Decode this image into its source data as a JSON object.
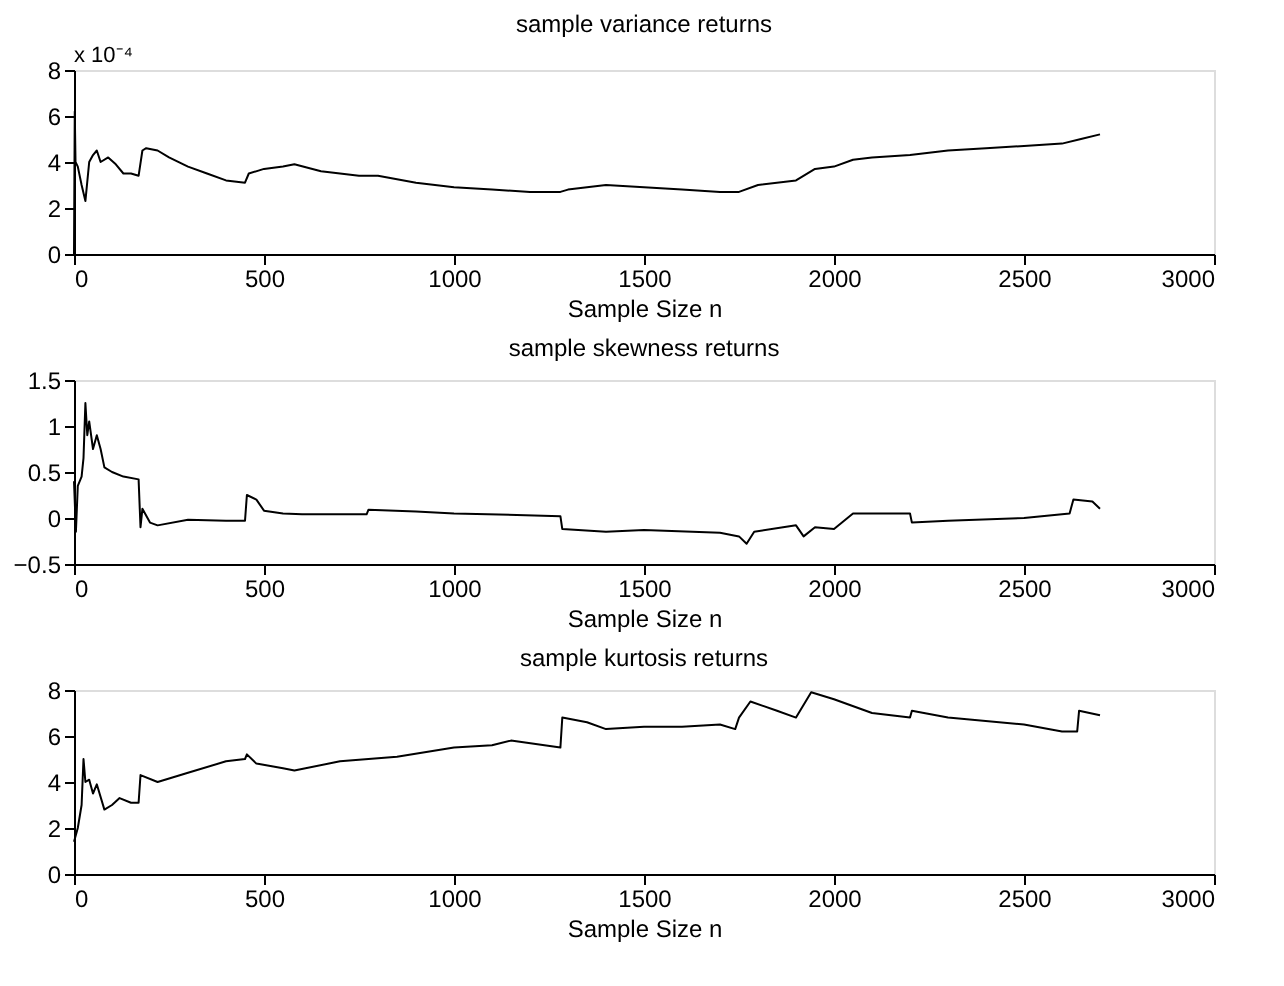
{
  "chart_data": [
    {
      "type": "line",
      "title": "sample variance returns",
      "xlabel": "Sample Size n",
      "annotations": [
        "x 10⁻⁴"
      ],
      "x": [
        0,
        2,
        4,
        10,
        20,
        30,
        40,
        50,
        60,
        70,
        90,
        110,
        130,
        150,
        170,
        180,
        190,
        220,
        250,
        300,
        350,
        400,
        450,
        460,
        500,
        550,
        580,
        650,
        750,
        800,
        900,
        1000,
        1100,
        1200,
        1280,
        1300,
        1400,
        1500,
        1600,
        1700,
        1750,
        1800,
        1900,
        1950,
        2000,
        2050,
        2100,
        2200,
        2300,
        2400,
        2500,
        2600,
        2650,
        2700
      ],
      "series": [
        {
          "color": "#000000",
          "values": [
            0.0,
            6.2,
            4.0,
            3.8,
            3.0,
            2.3,
            4.0,
            4.3,
            4.5,
            4.0,
            4.2,
            3.9,
            3.5,
            3.5,
            3.4,
            4.5,
            4.6,
            4.5,
            4.2,
            3.8,
            3.5,
            3.2,
            3.1,
            3.5,
            3.7,
            3.8,
            3.9,
            3.6,
            3.4,
            3.4,
            3.1,
            2.9,
            2.8,
            2.7,
            2.7,
            2.8,
            3.0,
            2.9,
            2.8,
            2.7,
            2.7,
            3.0,
            3.2,
            3.7,
            3.8,
            4.1,
            4.2,
            4.3,
            4.5,
            4.6,
            4.7,
            4.8,
            5.0,
            5.2
          ]
        }
      ],
      "xlim": [
        0,
        3000
      ],
      "xticks": [
        0,
        500,
        1000,
        1500,
        2000,
        2500,
        3000
      ],
      "ylim": [
        0,
        8
      ],
      "yticks": [
        0,
        2,
        4,
        6,
        8
      ]
    },
    {
      "type": "line",
      "title": "sample skewness returns",
      "xlabel": "Sample Size n",
      "x": [
        0,
        5,
        10,
        20,
        25,
        30,
        35,
        40,
        50,
        60,
        70,
        80,
        100,
        130,
        170,
        175,
        180,
        200,
        220,
        300,
        400,
        450,
        455,
        480,
        500,
        550,
        600,
        770,
        775,
        900,
        1000,
        1280,
        1285,
        1400,
        1500,
        1700,
        1750,
        1770,
        1790,
        1900,
        1920,
        1950,
        2000,
        2050,
        2200,
        2205,
        2300,
        2500,
        2620,
        2630,
        2680,
        2700
      ],
      "series": [
        {
          "color": "#000000",
          "values": [
            0.4,
            -0.15,
            0.35,
            0.45,
            0.65,
            1.25,
            0.9,
            1.05,
            0.75,
            0.9,
            0.75,
            0.55,
            0.5,
            0.45,
            0.42,
            -0.1,
            0.1,
            -0.05,
            -0.08,
            -0.02,
            -0.03,
            -0.03,
            0.25,
            0.2,
            0.08,
            0.05,
            0.04,
            0.04,
            0.09,
            0.07,
            0.05,
            0.02,
            -0.12,
            -0.15,
            -0.13,
            -0.16,
            -0.2,
            -0.28,
            -0.15,
            -0.08,
            -0.2,
            -0.1,
            -0.12,
            0.05,
            0.05,
            -0.05,
            -0.03,
            0.0,
            0.05,
            0.2,
            0.18,
            0.1
          ]
        }
      ],
      "xlim": [
        0,
        3000
      ],
      "xticks": [
        0,
        500,
        1000,
        1500,
        2000,
        2500,
        3000
      ],
      "ylim": [
        -0.5,
        1.5
      ],
      "yticks": [
        -0.5,
        0,
        0.5,
        1,
        1.5
      ]
    },
    {
      "type": "line",
      "title": "sample kurtosis returns",
      "xlabel": "Sample Size n",
      "x": [
        0,
        10,
        20,
        25,
        30,
        40,
        50,
        60,
        80,
        100,
        120,
        150,
        170,
        175,
        220,
        300,
        400,
        450,
        455,
        480,
        550,
        580,
        700,
        850,
        1000,
        1100,
        1150,
        1280,
        1285,
        1350,
        1400,
        1500,
        1600,
        1700,
        1740,
        1750,
        1780,
        1850,
        1900,
        1940,
        2000,
        2100,
        2200,
        2205,
        2300,
        2500,
        2600,
        2640,
        2645,
        2700
      ],
      "series": [
        {
          "color": "#000000",
          "values": [
            1.4,
            2.0,
            3.0,
            5.0,
            4.0,
            4.1,
            3.5,
            3.9,
            2.8,
            3.0,
            3.3,
            3.1,
            3.1,
            4.3,
            4.0,
            4.4,
            4.9,
            5.0,
            5.2,
            4.8,
            4.6,
            4.5,
            4.9,
            5.1,
            5.5,
            5.6,
            5.8,
            5.5,
            6.8,
            6.6,
            6.3,
            6.4,
            6.4,
            6.5,
            6.3,
            6.8,
            7.5,
            7.1,
            6.8,
            7.9,
            7.6,
            7.0,
            6.8,
            7.1,
            6.8,
            6.5,
            6.2,
            6.2,
            7.1,
            6.9
          ]
        }
      ],
      "xlim": [
        0,
        3000
      ],
      "xticks": [
        0,
        500,
        1000,
        1500,
        2000,
        2500,
        3000
      ],
      "ylim": [
        0,
        8
      ],
      "yticks": [
        0,
        2,
        4,
        6,
        8
      ]
    }
  ]
}
